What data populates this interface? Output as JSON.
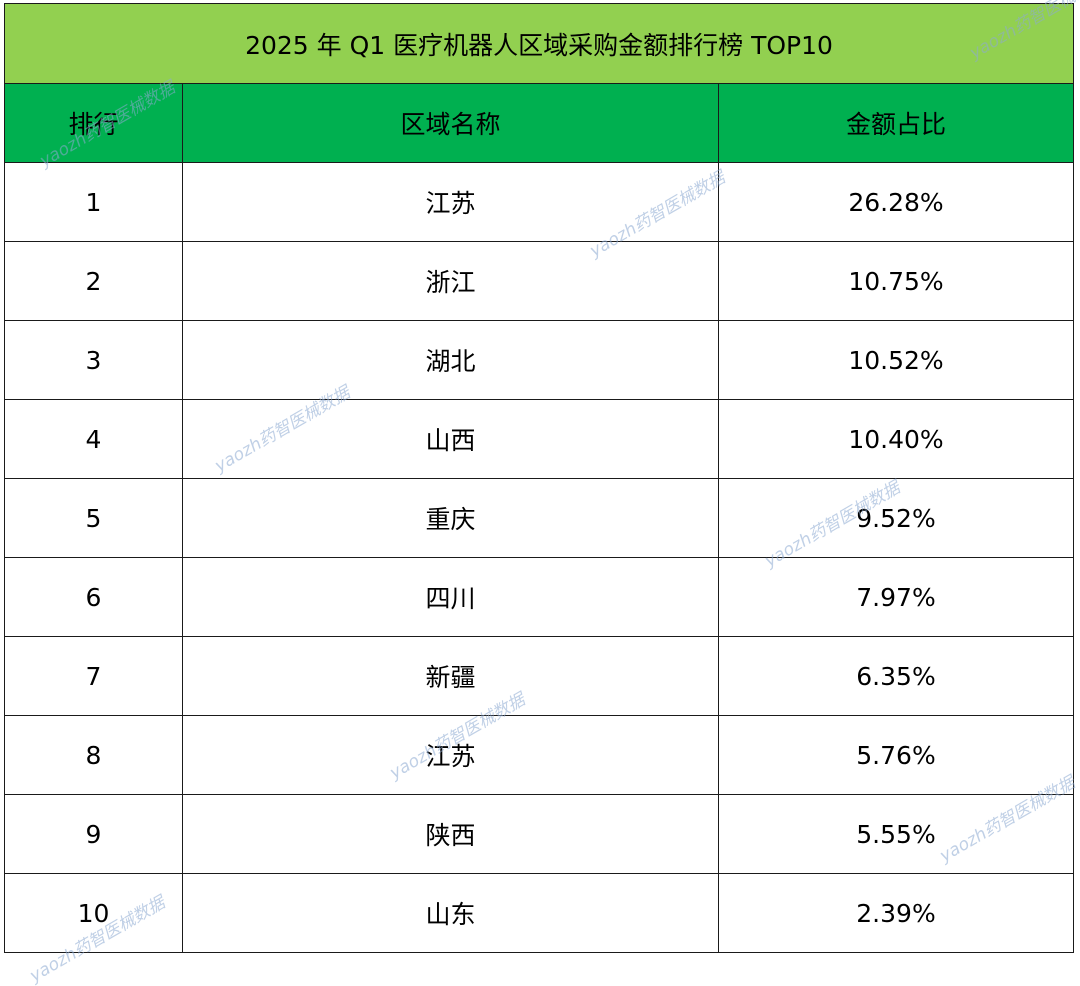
{
  "table": {
    "title": "2025 年 Q1 医疗机器人区域采购金额排行榜 TOP10",
    "headers": [
      "排行",
      "区域名称",
      "金额占比"
    ],
    "rows": [
      {
        "rank": "1",
        "region": "江苏",
        "share": "26.28%"
      },
      {
        "rank": "2",
        "region": "浙江",
        "share": "10.75%"
      },
      {
        "rank": "3",
        "region": "湖北",
        "share": "10.52%"
      },
      {
        "rank": "4",
        "region": "山西",
        "share": "10.40%"
      },
      {
        "rank": "5",
        "region": "重庆",
        "share": "9.52%"
      },
      {
        "rank": "6",
        "region": "四川",
        "share": "7.97%"
      },
      {
        "rank": "7",
        "region": "新疆",
        "share": "6.35%"
      },
      {
        "rank": "8",
        "region": "江苏",
        "share": "5.76%"
      },
      {
        "rank": "9",
        "region": "陕西",
        "share": "5.55%"
      },
      {
        "rank": "10",
        "region": "山东",
        "share": "2.39%"
      }
    ]
  },
  "watermark": "yaozh药智医械数据",
  "colors": {
    "title_bg": "#92d050",
    "header_bg": "#00b050",
    "border": "#1a1a1a"
  }
}
